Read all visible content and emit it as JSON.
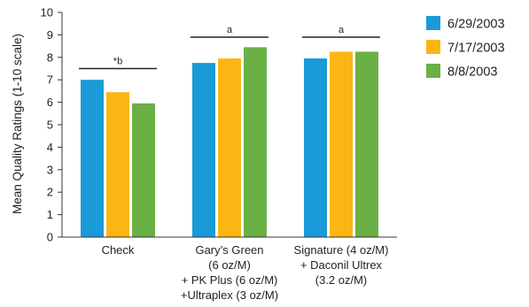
{
  "chart_data": {
    "type": "bar",
    "ylabel": "Mean Quality Ratings (1-10 scale)",
    "ylim": [
      0,
      10
    ],
    "yticks": [
      0,
      1,
      2,
      3,
      4,
      5,
      6,
      7,
      8,
      9,
      10
    ],
    "grid": false,
    "legend_position": "top-right",
    "categories": [
      [
        "Check"
      ],
      [
        "Gary’s Green",
        "(6 oz/M)",
        "+ PK Plus (6 oz/M)",
        "+Ultraplex (3 oz/M)"
      ],
      [
        "Signature (4 oz/M)",
        "+ Daconil Ultrex",
        "(3.2 oz/M)"
      ]
    ],
    "series": [
      {
        "name": "6/29/2003",
        "color": "#1a9ad9",
        "values": [
          7.0,
          7.75,
          7.95
        ]
      },
      {
        "name": "7/17/2003",
        "color": "#fbb614",
        "values": [
          6.45,
          7.95,
          8.25
        ]
      },
      {
        "name": "8/8/2003",
        "color": "#6ab045",
        "values": [
          5.95,
          8.45,
          8.25
        ]
      }
    ],
    "significance": [
      {
        "label": "*b",
        "value": 7.5
      },
      {
        "label": "a",
        "value": 8.9
      },
      {
        "label": "a",
        "value": 8.9
      }
    ]
  }
}
